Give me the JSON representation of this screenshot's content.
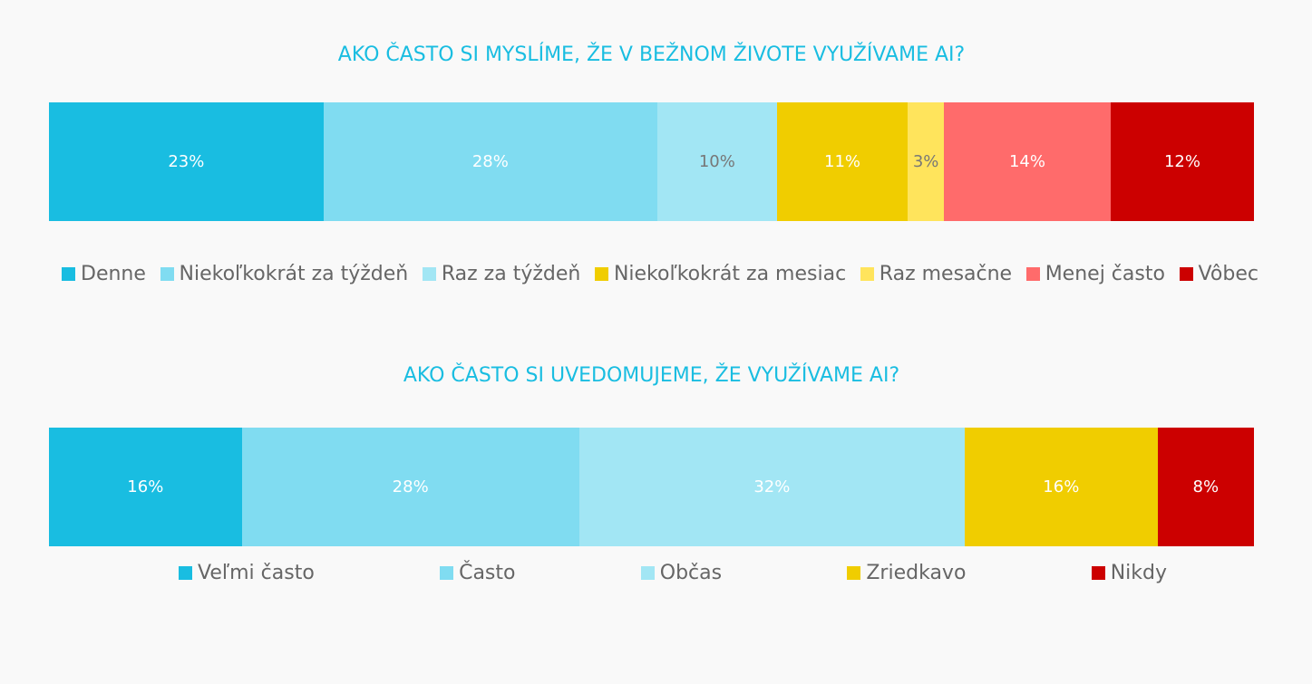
{
  "chart_data": [
    {
      "type": "bar",
      "stacked": true,
      "orientation": "horizontal",
      "title": "AKO ČASTO SI MYSLÍME, ŽE V BEŽNOM ŽIVOTE VYUŽÍVAME AI?",
      "legend_position": "bottom",
      "series": [
        {
          "name": "Denne",
          "value": 23,
          "label": "23%",
          "color": "#19bde1",
          "label_color": "#ffffff"
        },
        {
          "name": "Niekoľkokrát za týždeň",
          "value": 28,
          "label": "28%",
          "color": "#80dcf1",
          "label_color": "#ffffff"
        },
        {
          "name": "Raz za týždeň",
          "value": 10,
          "label": "10%",
          "color": "#a2e6f4",
          "label_color": "#777777"
        },
        {
          "name": "Niekoľkokrát za mesiac",
          "value": 11,
          "label": "11%",
          "color": "#f0cd00",
          "label_color": "#ffffff"
        },
        {
          "name": "Raz mesačne",
          "value": 3,
          "label": "3%",
          "color": "#ffe45c",
          "label_color": "#777777"
        },
        {
          "name": "Menej často",
          "value": 14,
          "label": "14%",
          "color": "#ff6b6b",
          "label_color": "#ffffff"
        },
        {
          "name": "Vôbec",
          "value": 12,
          "label": "12%",
          "color": "#cc0000",
          "label_color": "#ffffff"
        }
      ]
    },
    {
      "type": "bar",
      "stacked": true,
      "orientation": "horizontal",
      "title": "AKO ČASTO SI UVEDOMUJEME, ŽE VYUŽÍVAME AI?",
      "legend_position": "bottom",
      "series": [
        {
          "name": "Veľmi často",
          "value": 16,
          "label": "16%",
          "color": "#19bde1",
          "label_color": "#ffffff"
        },
        {
          "name": "Často",
          "value": 28,
          "label": "28%",
          "color": "#80dcf1",
          "label_color": "#ffffff"
        },
        {
          "name": "Občas",
          "value": 32,
          "label": "32%",
          "color": "#a2e6f4",
          "label_color": "#ffffff"
        },
        {
          "name": "Zriedkavo",
          "value": 16,
          "label": "16%",
          "color": "#f0cd00",
          "label_color": "#ffffff"
        },
        {
          "name": "Nikdy",
          "value": 8,
          "label": "8%",
          "color": "#cc0000",
          "label_color": "#ffffff"
        }
      ]
    }
  ]
}
